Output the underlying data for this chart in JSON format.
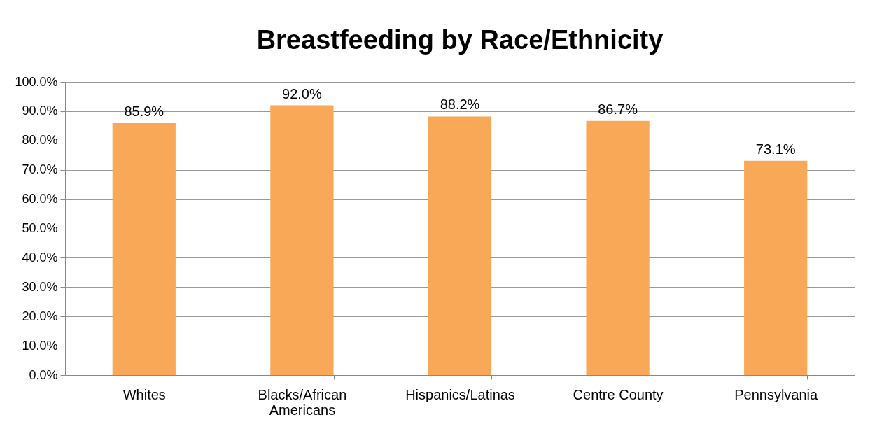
{
  "chart_data": {
    "type": "bar",
    "title": "Breastfeeding by Race/Ethnicity",
    "categories": [
      "Whites",
      "Blacks/African\nAmericans",
      "Hispanics/Latinas",
      "Centre County",
      "Pennsylvania"
    ],
    "values": [
      85.9,
      92.0,
      88.2,
      86.7,
      73.1
    ],
    "value_labels": [
      "85.9%",
      "92.0%",
      "88.2%",
      "86.7%",
      "73.1%"
    ],
    "color": "#f9a857",
    "ylim": [
      0,
      100
    ],
    "yticks": [
      {
        "value": 0,
        "label": "0.0%"
      },
      {
        "value": 10,
        "label": "10.0%"
      },
      {
        "value": 20,
        "label": "20.0%"
      },
      {
        "value": 30,
        "label": "30.0%"
      },
      {
        "value": 40,
        "label": "40.0%"
      },
      {
        "value": 50,
        "label": "50.0%"
      },
      {
        "value": 60,
        "label": "60.0%"
      },
      {
        "value": 70,
        "label": "70.0%"
      },
      {
        "value": 80,
        "label": "80.0%"
      },
      {
        "value": 90,
        "label": "90.0%"
      },
      {
        "value": 100,
        "label": "100.0%"
      }
    ],
    "grid": "y"
  }
}
